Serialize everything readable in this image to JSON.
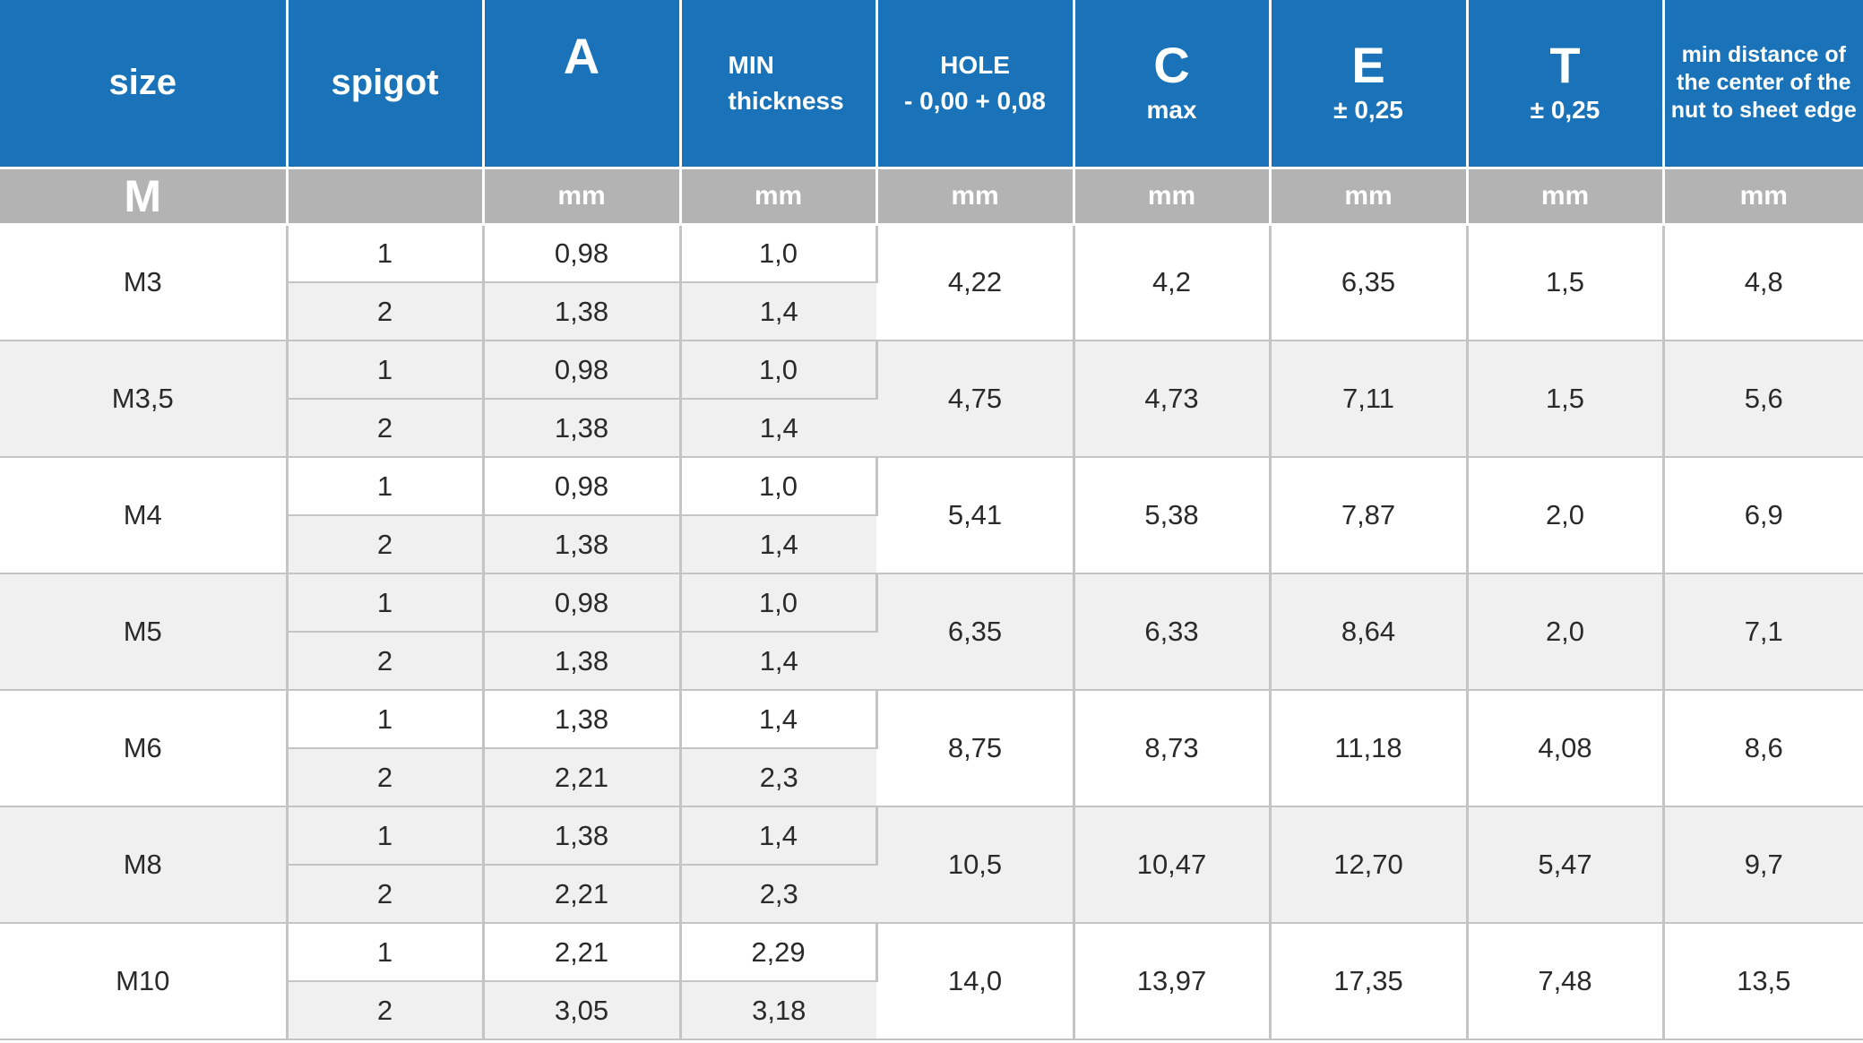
{
  "headers": {
    "size": "size",
    "spigot": "spigot",
    "a": "A",
    "min_line1": "MIN",
    "min_line2": "thickness",
    "hole_line1": "HOLE",
    "hole_line2": "- 0,00 + 0,08",
    "c": "C",
    "c_sub": "max",
    "e": "E",
    "e_sub": "± 0,25",
    "t": "T",
    "t_sub": "± 0,25",
    "dist_line1": "min distance of",
    "dist_line2": "the center of the",
    "dist_line3": "nut to sheet  edge"
  },
  "units": {
    "size": "M",
    "spigot": "",
    "a": "mm",
    "min": "mm",
    "hole": "mm",
    "c": "mm",
    "e": "mm",
    "t": "mm",
    "dist": "mm"
  },
  "rows": [
    {
      "size": "M3",
      "hole": "4,22",
      "c": "4,2",
      "e": "6,35",
      "t": "1,5",
      "dist": "4,8",
      "sub": [
        {
          "spigot": "1",
          "a": "0,98",
          "min": "1,0"
        },
        {
          "spigot": "2",
          "a": "1,38",
          "min": "1,4"
        }
      ]
    },
    {
      "size": "M3,5",
      "hole": "4,75",
      "c": "4,73",
      "e": "7,11",
      "t": "1,5",
      "dist": "5,6",
      "sub": [
        {
          "spigot": "1",
          "a": "0,98",
          "min": "1,0"
        },
        {
          "spigot": "2",
          "a": "1,38",
          "min": "1,4"
        }
      ]
    },
    {
      "size": "M4",
      "hole": "5,41",
      "c": "5,38",
      "e": "7,87",
      "t": "2,0",
      "dist": "6,9",
      "sub": [
        {
          "spigot": "1",
          "a": "0,98",
          "min": "1,0"
        },
        {
          "spigot": "2",
          "a": "1,38",
          "min": "1,4"
        }
      ]
    },
    {
      "size": "M5",
      "hole": "6,35",
      "c": "6,33",
      "e": "8,64",
      "t": "2,0",
      "dist": "7,1",
      "sub": [
        {
          "spigot": "1",
          "a": "0,98",
          "min": "1,0"
        },
        {
          "spigot": "2",
          "a": "1,38",
          "min": "1,4"
        }
      ]
    },
    {
      "size": "M6",
      "hole": "8,75",
      "c": "8,73",
      "e": "11,18",
      "t": "4,08",
      "dist": "8,6",
      "sub": [
        {
          "spigot": "1",
          "a": "1,38",
          "min": "1,4"
        },
        {
          "spigot": "2",
          "a": "2,21",
          "min": "2,3"
        }
      ]
    },
    {
      "size": "M8",
      "hole": "10,5",
      "c": "10,47",
      "e": "12,70",
      "t": "5,47",
      "dist": "9,7",
      "sub": [
        {
          "spigot": "1",
          "a": "1,38",
          "min": "1,4"
        },
        {
          "spigot": "2",
          "a": "2,21",
          "min": "2,3"
        }
      ]
    },
    {
      "size": "M10",
      "hole": "14,0",
      "c": "13,97",
      "e": "17,35",
      "t": "7,48",
      "dist": "13,5",
      "sub": [
        {
          "spigot": "1",
          "a": "2,21",
          "min": "2,29"
        },
        {
          "spigot": "2",
          "a": "3,05",
          "min": "3,18"
        }
      ]
    }
  ]
}
